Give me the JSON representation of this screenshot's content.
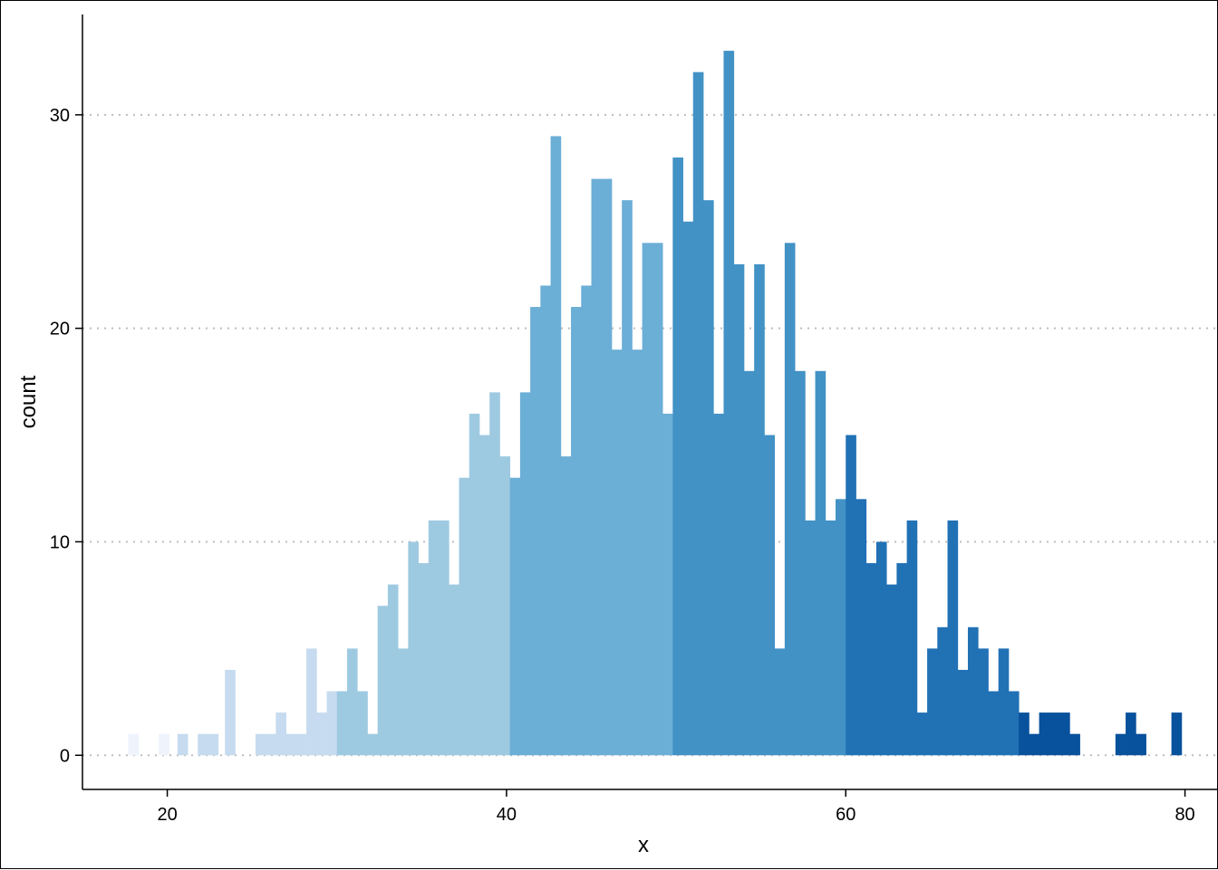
{
  "chart_data": {
    "type": "bar",
    "title": "",
    "xlabel": "x",
    "ylabel": "count",
    "xlim": [
      15,
      82
    ],
    "ylim": [
      -1.6,
      34.7
    ],
    "x_ticks": [
      "20",
      "40",
      "60",
      "80"
    ],
    "y_ticks": [
      "0",
      "10",
      "20",
      "30"
    ],
    "grid": "horizontal dotted",
    "legend": "none",
    "bin_width": 0.6,
    "x": [
      18.0,
      19.8,
      20.9,
      22.1,
      22.7,
      23.7,
      25.5,
      26.1,
      26.7,
      27.3,
      27.9,
      28.5,
      29.1,
      29.7,
      30.3,
      30.9,
      31.5,
      32.1,
      32.7,
      33.3,
      33.9,
      34.5,
      35.1,
      35.7,
      36.3,
      36.9,
      37.5,
      38.1,
      38.7,
      39.3,
      39.9,
      40.5,
      41.1,
      41.7,
      42.3,
      42.9,
      43.5,
      44.1,
      44.7,
      45.3,
      45.9,
      46.5,
      47.1,
      47.7,
      48.3,
      48.9,
      49.5,
      50.1,
      50.7,
      51.3,
      51.9,
      52.5,
      53.1,
      53.7,
      54.3,
      54.9,
      55.5,
      56.1,
      56.7,
      57.3,
      57.9,
      58.5,
      59.1,
      59.7,
      60.3,
      60.9,
      61.5,
      62.1,
      62.7,
      63.3,
      63.9,
      64.5,
      65.1,
      65.7,
      66.3,
      66.9,
      67.5,
      68.1,
      68.7,
      69.3,
      69.9,
      70.5,
      71.1,
      71.7,
      72.3,
      72.9,
      73.5,
      76.2,
      76.8,
      77.4,
      79.5
    ],
    "values": [
      1,
      1,
      1,
      1,
      1,
      4,
      1,
      1,
      2,
      1,
      1,
      5,
      2,
      3,
      3,
      5,
      3,
      1,
      7,
      8,
      5,
      10,
      9,
      11,
      11,
      8,
      13,
      16,
      15,
      17,
      14,
      13,
      17,
      21,
      22,
      29,
      14,
      21,
      22,
      27,
      27,
      19,
      26,
      19,
      24,
      24,
      16,
      28,
      25,
      32,
      26,
      16,
      33,
      23,
      18,
      23,
      15,
      5,
      24,
      18,
      11,
      18,
      11,
      12,
      15,
      12,
      9,
      10,
      8,
      9,
      11,
      2,
      5,
      6,
      11,
      4,
      6,
      5,
      3,
      5,
      3,
      2,
      1,
      2,
      2,
      2,
      1,
      1,
      2,
      1,
      2
    ],
    "color_bins": [
      {
        "from": 15,
        "to": 20,
        "color": "#eef3fc"
      },
      {
        "from": 20,
        "to": 30,
        "color": "#c6dbef"
      },
      {
        "from": 30,
        "to": 40,
        "color": "#9ecae1"
      },
      {
        "from": 40,
        "to": 50,
        "color": "#6baed6"
      },
      {
        "from": 50,
        "to": 60,
        "color": "#4292c6"
      },
      {
        "from": 60,
        "to": 70,
        "color": "#2171b5"
      },
      {
        "from": 70,
        "to": 90,
        "color": "#08519c"
      }
    ]
  }
}
